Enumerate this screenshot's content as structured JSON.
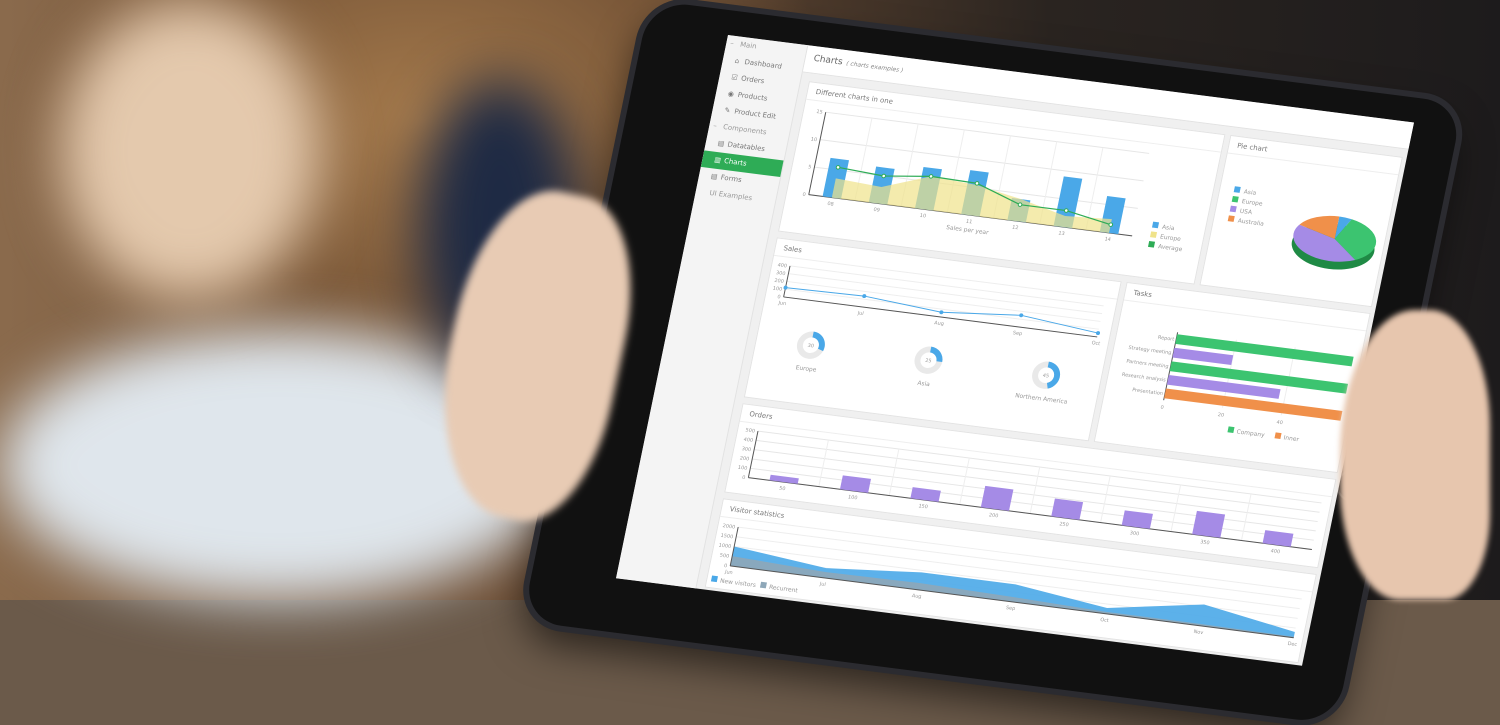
{
  "colors": {
    "accent": "#2eac56",
    "asia": "#4aa8e8",
    "europe": "#f0e38a",
    "average": "#2eac56",
    "purple": "#a58be6",
    "green": "#3cc470",
    "orange": "#f0904a",
    "recurrent": "#8ea7b8"
  },
  "header": {
    "title": "Charts",
    "subtitle": "( charts examples )"
  },
  "sidebar": {
    "items": [
      {
        "label": "Main",
        "icon": "minus-icon",
        "type": "section"
      },
      {
        "label": "Dashboard",
        "icon": "home-icon"
      },
      {
        "label": "Orders",
        "icon": "check-icon"
      },
      {
        "label": "Products",
        "icon": "box-icon"
      },
      {
        "label": "Product Edit",
        "icon": "edit-icon"
      },
      {
        "label": "Components",
        "icon": "minus-icon",
        "type": "section"
      },
      {
        "label": "Datatables",
        "icon": "table-icon"
      },
      {
        "label": "Charts",
        "icon": "chart-icon",
        "active": true
      },
      {
        "label": "Forms",
        "icon": "form-icon"
      },
      {
        "label": "UI Examples",
        "icon": "",
        "type": "section"
      }
    ]
  },
  "panels": {
    "combo": "Different charts in one",
    "pie": "Pie chart",
    "sales": "Sales",
    "tasks": "Tasks",
    "orders": "Orders",
    "visitors": "Visitor statistics"
  },
  "chart_data": [
    {
      "id": "combo",
      "type": "bar",
      "title": "Different charts in one",
      "xlabel": "Sales per year",
      "categories": [
        "08",
        "09",
        "10",
        "11",
        "12",
        "13",
        "14"
      ],
      "ylim": [
        0,
        15
      ],
      "yticks": [
        0,
        5,
        10,
        15
      ],
      "grid": true,
      "legend": "right",
      "series": [
        {
          "name": "Asia",
          "type": "bar",
          "values": [
            7,
            6.5,
            7.5,
            8,
            4,
            9,
            6.5
          ]
        },
        {
          "name": "Europe",
          "type": "area",
          "values": [
            3.5,
            3,
            6,
            5.5,
            4,
            2,
            2.5
          ]
        },
        {
          "name": "Average",
          "type": "line",
          "values": [
            5.5,
            5,
            6,
            5.8,
            3,
            3,
            1.5
          ]
        }
      ]
    },
    {
      "id": "pie",
      "type": "pie",
      "title": "Pie chart",
      "legend": "left",
      "categories": [
        "Asia",
        "Europe",
        "USA",
        "Australia"
      ],
      "values": [
        5,
        35,
        42,
        18
      ]
    },
    {
      "id": "sales",
      "type": "line",
      "title": "Sales",
      "categories": [
        "Jun",
        "Jul",
        "Aug",
        "Sep",
        "Oct"
      ],
      "ylim": [
        0,
        400
      ],
      "yticks": [
        0,
        100,
        200,
        300,
        400
      ],
      "values": [
        120,
        140,
        60,
        150,
        50
      ],
      "donuts": [
        {
          "label": "Europe",
          "value": 30
        },
        {
          "label": "Asia",
          "value": 25
        },
        {
          "label": "Northern America",
          "value": 45
        }
      ]
    },
    {
      "id": "tasks",
      "type": "bar",
      "orientation": "horizontal",
      "title": "Tasks",
      "categories": [
        "Report",
        "Strategy meeting",
        "Partners meeting",
        "Research analysis",
        "Presentation"
      ],
      "xlim": [
        0,
        60
      ],
      "xticks": [
        0,
        20,
        40
      ],
      "legend": "bottom",
      "series": [
        {
          "name": "Company",
          "values": [
            60,
            null,
            60,
            null,
            null
          ]
        },
        {
          "name": "",
          "values": [
            null,
            20,
            null,
            38,
            null
          ]
        },
        {
          "name": "Inner",
          "values": [
            null,
            null,
            null,
            null,
            60
          ]
        }
      ]
    },
    {
      "id": "orders",
      "type": "bar",
      "title": "Orders",
      "categories": [
        "50",
        "100",
        "150",
        "200",
        "250",
        "300",
        "350",
        "400"
      ],
      "ylim": [
        0,
        500
      ],
      "yticks": [
        0,
        100,
        200,
        300,
        400,
        500
      ],
      "values": [
        60,
        150,
        120,
        230,
        190,
        160,
        250,
        140
      ]
    },
    {
      "id": "visitors",
      "type": "area",
      "title": "Visitor statistics",
      "categories": [
        "Jun",
        "Jul",
        "Aug",
        "Sep",
        "Oct",
        "Nov",
        "Dec"
      ],
      "ylim": [
        0,
        2000
      ],
      "yticks": [
        0,
        500,
        1000,
        1500,
        2000
      ],
      "legend": "bottom-left",
      "series": [
        {
          "name": "New visitors",
          "values": [
            1000,
            500,
            900,
            900,
            300,
            1100,
            300
          ]
        },
        {
          "name": "Recurrent",
          "values": [
            500,
            300,
            350,
            250,
            100,
            100,
            50
          ]
        }
      ]
    }
  ]
}
